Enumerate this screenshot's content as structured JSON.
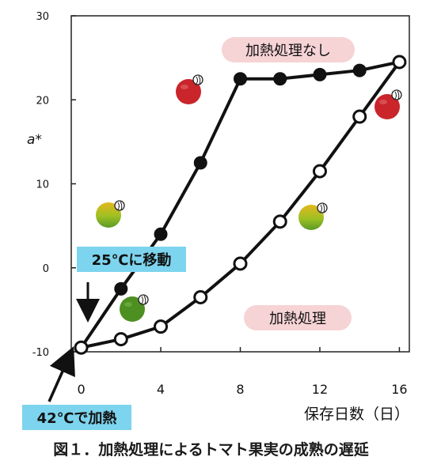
{
  "chart_data": {
    "type": "line",
    "ylabel": "a*",
    "xlabel": "保存日数（日）",
    "xlim": [
      -0.5,
      16.5
    ],
    "ylim": [
      -10,
      30
    ],
    "x_ticks": [
      0,
      4,
      8,
      12,
      16
    ],
    "y_ticks": [
      -10,
      0,
      10,
      20,
      30
    ],
    "grid": false,
    "series": [
      {
        "name": "加熱処理なし",
        "marker": "filled-circle",
        "color": "#111111",
        "x": [
          0,
          2,
          4,
          6,
          8,
          10,
          12,
          14,
          16
        ],
        "y": [
          -9.5,
          -2.5,
          4,
          12.5,
          22.5,
          22.5,
          23,
          23.5,
          24.5
        ]
      },
      {
        "name": "加熱処理",
        "marker": "open-circle",
        "color": "#111111",
        "x": [
          0,
          2,
          4,
          6,
          8,
          10,
          12,
          14,
          16
        ],
        "y": [
          -9.5,
          -8.5,
          -7,
          -3.5,
          0.5,
          5.5,
          11.5,
          18,
          24.5
        ]
      }
    ],
    "annotations": [
      {
        "text": "25℃に移動",
        "style": "blue-box",
        "arrow": "down",
        "x": 1
      },
      {
        "text": "42℃で加熱",
        "style": "blue-box",
        "arrow": "up",
        "x": 0
      }
    ]
  },
  "caption": "図１．加熱処理によるトマト果実の成熟の遅延",
  "colors": {
    "blue_label": "#7dd4ee",
    "pink_label": "#f6d3d5",
    "tomato_red": "#c9252b",
    "tomato_green": "#4e8f22",
    "tomato_yellow": "#e0b51c"
  },
  "icons": [
    "tomato-red-icon",
    "tomato-turning-icon",
    "tomato-green-icon"
  ]
}
